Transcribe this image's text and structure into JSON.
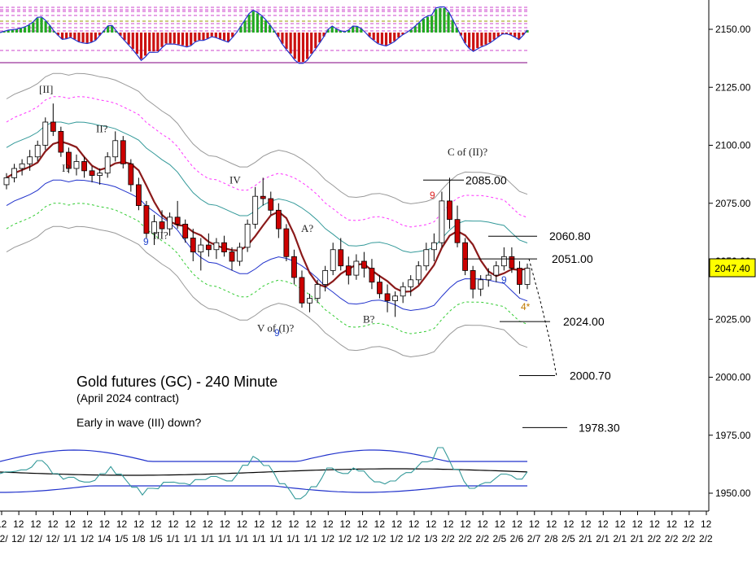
{
  "chart_data": {
    "type": "candlestick",
    "title": "Gold futures (GC) - 240 Minute",
    "subtitle": "(April 2024 contract)",
    "note": "Early in wave (III) down?",
    "ylim": [
      1945,
      2160
    ],
    "yticks": [
      1950,
      1975,
      2000,
      2025,
      2050,
      2075,
      2100,
      2125,
      2150
    ],
    "ytick_labels": [
      "1950.00",
      "1975.00",
      "2000.00",
      "2025.00",
      "2050.00",
      "2075.00",
      "2100.00",
      "2125.00",
      "2150.00"
    ],
    "last_price": "2047.40",
    "levels": [
      {
        "label": "2085.00",
        "value": 2085.0
      },
      {
        "label": "2060.80",
        "value": 2060.8
      },
      {
        "label": "2051.00",
        "value": 2051.0
      },
      {
        "label": "2024.00",
        "value": 2024.0
      },
      {
        "label": "2000.70",
        "value": 2000.7
      },
      {
        "label": "1978.30",
        "value": 1978.3
      }
    ],
    "wave_labels": [
      {
        "text": "[II]",
        "price": 2124
      },
      {
        "text": "I?",
        "price": 2090
      },
      {
        "text": "II?",
        "price": 2107
      },
      {
        "text": "III?",
        "price": 2061
      },
      {
        "text": "IV",
        "price": 2085
      },
      {
        "text": "V of (I)?",
        "price": 2021
      },
      {
        "text": "A?",
        "price": 2064
      },
      {
        "text": "B?",
        "price": 2025
      },
      {
        "text": "C of (II)?",
        "price": 2097
      }
    ],
    "count_marks": [
      "9",
      "9",
      "9",
      "9",
      "4*"
    ],
    "x_top_labels": [
      "12",
      "12",
      "12",
      "12",
      "12",
      "12",
      "12",
      "12",
      "12",
      "12",
      "12",
      "12",
      "12",
      "12",
      "12",
      "12",
      "12",
      "12",
      "12",
      "12",
      "12",
      "12",
      "12",
      "12",
      "12",
      "12",
      "12",
      "12",
      "12",
      "12",
      "12",
      "12",
      "12",
      "12",
      "12",
      "12",
      "12",
      "12",
      "12",
      "12",
      "12",
      "12"
    ],
    "x_bottom_labels": [
      "12/",
      "12/",
      "12/",
      "12/",
      "1/1",
      "1/2",
      "1/4",
      "1/5",
      "1/8",
      "1/5",
      "1/1",
      "1/1",
      "1/1",
      "1/1",
      "1/1",
      "1/1",
      "1/1",
      "1/1",
      "1/1",
      "1/2",
      "1/2",
      "1/2",
      "1/2",
      "1/2",
      "1/2",
      "1/3",
      "2/2",
      "2/2",
      "2/2",
      "2/5",
      "2/6",
      "2/7",
      "2/8",
      "2/5",
      "2/1",
      "2/1",
      "2/1",
      "2/1",
      "2/2",
      "2/2",
      "2/2",
      "2/2"
    ],
    "candles": [
      [
        2083,
        2088,
        2081,
        2086
      ],
      [
        2086,
        2092,
        2084,
        2090
      ],
      [
        2090,
        2094,
        2087,
        2092
      ],
      [
        2092,
        2098,
        2089,
        2095
      ],
      [
        2095,
        2102,
        2093,
        2100
      ],
      [
        2100,
        2112,
        2098,
        2110
      ],
      [
        2110,
        2118,
        2104,
        2106
      ],
      [
        2106,
        2108,
        2095,
        2097
      ],
      [
        2097,
        2099,
        2088,
        2090
      ],
      [
        2090,
        2096,
        2087,
        2093
      ],
      [
        2093,
        2095,
        2086,
        2089
      ],
      [
        2089,
        2091,
        2084,
        2087
      ],
      [
        2087,
        2090,
        2083,
        2088
      ],
      [
        2088,
        2097,
        2086,
        2095
      ],
      [
        2095,
        2106,
        2093,
        2102
      ],
      [
        2102,
        2104,
        2090,
        2092
      ],
      [
        2092,
        2094,
        2080,
        2083
      ],
      [
        2083,
        2086,
        2072,
        2074
      ],
      [
        2074,
        2076,
        2060,
        2062
      ],
      [
        2062,
        2070,
        2057,
        2067
      ],
      [
        2067,
        2072,
        2062,
        2064
      ],
      [
        2064,
        2071,
        2061,
        2069
      ],
      [
        2069,
        2076,
        2064,
        2066
      ],
      [
        2066,
        2068,
        2058,
        2060
      ],
      [
        2060,
        2064,
        2050,
        2054
      ],
      [
        2054,
        2060,
        2046,
        2057
      ],
      [
        2057,
        2062,
        2052,
        2055
      ],
      [
        2055,
        2060,
        2051,
        2058
      ],
      [
        2058,
        2061,
        2052,
        2054
      ],
      [
        2054,
        2056,
        2046,
        2050
      ],
      [
        2050,
        2058,
        2048,
        2056
      ],
      [
        2056,
        2068,
        2054,
        2066
      ],
      [
        2066,
        2082,
        2064,
        2078
      ],
      [
        2078,
        2086,
        2074,
        2077
      ],
      [
        2077,
        2080,
        2070,
        2072
      ],
      [
        2072,
        2075,
        2060,
        2064
      ],
      [
        2064,
        2066,
        2050,
        2052
      ],
      [
        2052,
        2055,
        2040,
        2043
      ],
      [
        2043,
        2046,
        2030,
        2032
      ],
      [
        2032,
        2036,
        2028,
        2034
      ],
      [
        2034,
        2042,
        2032,
        2040
      ],
      [
        2040,
        2048,
        2037,
        2046
      ],
      [
        2046,
        2058,
        2044,
        2055
      ],
      [
        2055,
        2060,
        2046,
        2048
      ],
      [
        2048,
        2052,
        2040,
        2044
      ],
      [
        2044,
        2053,
        2042,
        2050
      ],
      [
        2050,
        2054,
        2043,
        2047
      ],
      [
        2047,
        2051,
        2038,
        2041
      ],
      [
        2041,
        2044,
        2034,
        2036
      ],
      [
        2036,
        2040,
        2028,
        2033
      ],
      [
        2033,
        2037,
        2026,
        2035
      ],
      [
        2035,
        2041,
        2032,
        2039
      ],
      [
        2039,
        2044,
        2035,
        2042
      ],
      [
        2042,
        2050,
        2040,
        2048
      ],
      [
        2048,
        2058,
        2046,
        2055
      ],
      [
        2055,
        2062,
        2050,
        2058
      ],
      [
        2058,
        2080,
        2056,
        2076
      ],
      [
        2076,
        2086,
        2064,
        2068
      ],
      [
        2068,
        2074,
        2056,
        2058
      ],
      [
        2058,
        2060,
        2044,
        2046
      ],
      [
        2046,
        2048,
        2034,
        2038
      ],
      [
        2038,
        2044,
        2035,
        2042
      ],
      [
        2042,
        2047,
        2039,
        2044
      ],
      [
        2044,
        2050,
        2041,
        2048
      ],
      [
        2048,
        2056,
        2046,
        2052
      ],
      [
        2052,
        2056,
        2045,
        2047
      ],
      [
        2047,
        2050,
        2036,
        2040
      ],
      [
        2040,
        2049,
        2038,
        2047
      ]
    ]
  }
}
